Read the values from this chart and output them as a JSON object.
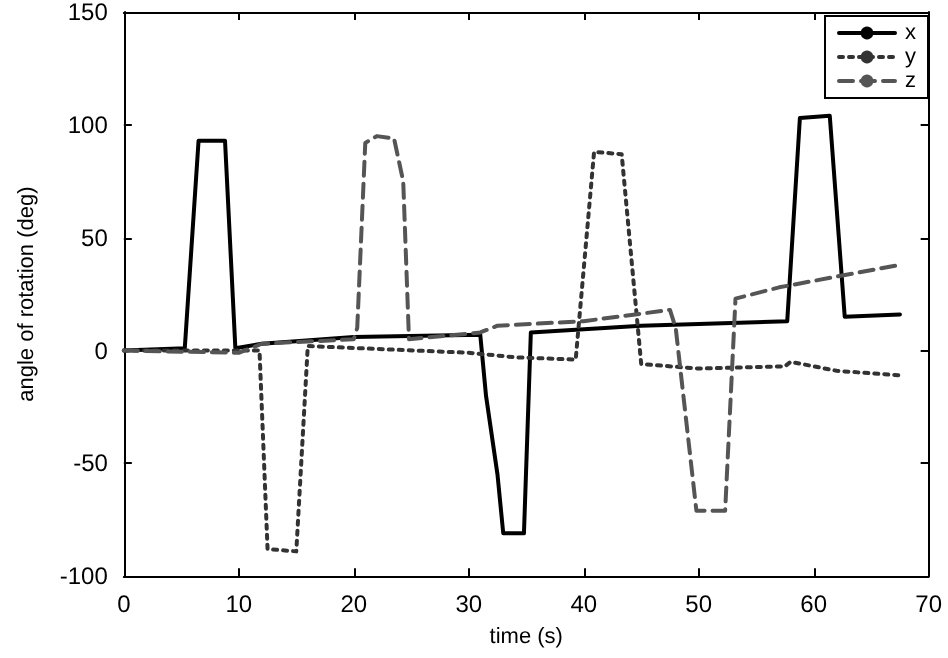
{
  "chart_data": {
    "type": "line",
    "xlabel": "time (s)",
    "ylabel": "angle of rotation (deg)",
    "xlim": [
      0,
      70
    ],
    "xticks": [
      0,
      10,
      20,
      30,
      40,
      50,
      60,
      70
    ],
    "ylim": [
      -100,
      150
    ],
    "yticks": [
      -100,
      -50,
      0,
      50,
      100,
      150
    ],
    "grid": false,
    "legend": "top right",
    "marker": "none",
    "series": [
      {
        "name": "x",
        "color": "#000000",
        "line_style": "solid",
        "x": [
          0,
          5.3,
          6.5,
          8.8,
          9.7,
          12,
          20,
          31,
          31.5,
          32.5,
          33,
          34.8,
          35.4,
          45,
          57.7,
          58.8,
          61.4,
          62.7,
          67.5
        ],
        "values": [
          0,
          1,
          93,
          93,
          1,
          3,
          6,
          7,
          -20,
          -55,
          -81,
          -81,
          8,
          11,
          13,
          103,
          104,
          15,
          16
        ]
      },
      {
        "name": "y",
        "color": "#333333",
        "line_style": "dotted",
        "x": [
          0,
          11.8,
          12.5,
          15,
          16,
          30,
          34,
          39.3,
          40.9,
          43.3,
          45,
          50,
          57.5,
          58,
          62,
          67.5
        ],
        "values": [
          0,
          0,
          -88,
          -89,
          2,
          -1,
          -3,
          -4,
          88,
          87,
          -6,
          -8,
          -7,
          -5,
          -9,
          -11
        ],
        "type": "line"
      },
      {
        "name": "z",
        "color": "#555555",
        "line_style": "dashed",
        "x": [
          0,
          10,
          12,
          20,
          20.3,
          21,
          22,
          23.5,
          24.3,
          24.8,
          31,
          32.5,
          40,
          47.5,
          48,
          49.8,
          52.3,
          53.2,
          57,
          67.5
        ],
        "values": [
          0,
          -1,
          3,
          5,
          10,
          92,
          95,
          94,
          75,
          5,
          8,
          11,
          13,
          18,
          10,
          -71,
          -71,
          23,
          28,
          38
        ]
      }
    ]
  }
}
